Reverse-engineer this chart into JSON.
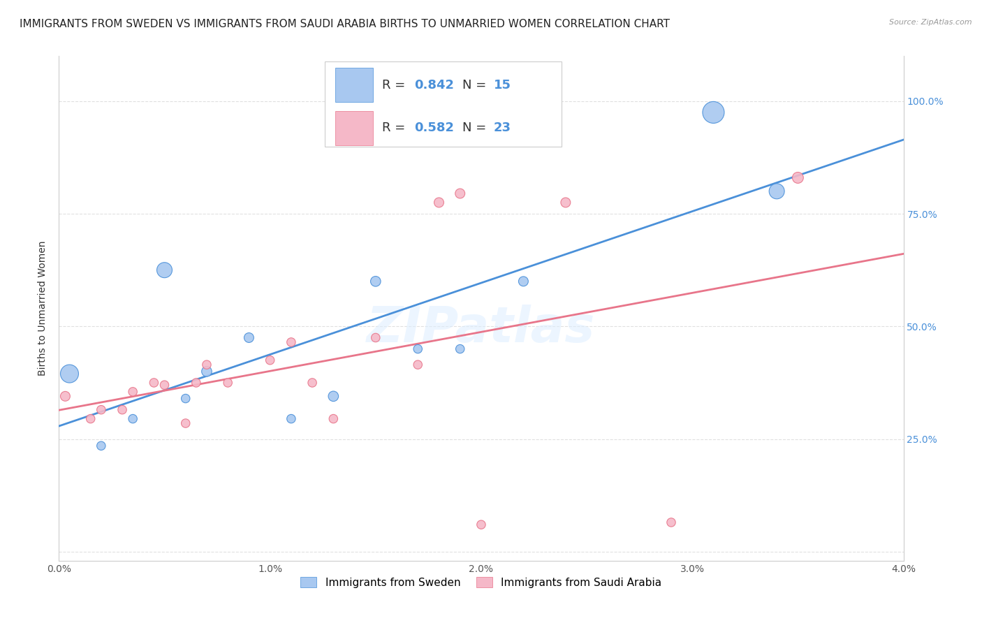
{
  "title": "IMMIGRANTS FROM SWEDEN VS IMMIGRANTS FROM SAUDI ARABIA BIRTHS TO UNMARRIED WOMEN CORRELATION CHART",
  "source": "Source: ZipAtlas.com",
  "ylabel": "Births to Unmarried Women",
  "legend_label1": "Immigrants from Sweden",
  "legend_label2": "Immigrants from Saudi Arabia",
  "r1": 0.842,
  "n1": 15,
  "r2": 0.582,
  "n2": 23,
  "color_sweden": "#a8c8f0",
  "color_saudi": "#f5b8c8",
  "color_line_sweden": "#4a90d9",
  "color_line_saudi": "#e8758a",
  "xlim": [
    0.0,
    0.04
  ],
  "ylim": [
    -0.02,
    1.1
  ],
  "xticks": [
    0.0,
    0.01,
    0.02,
    0.03,
    0.04
  ],
  "xtick_labels": [
    "0.0%",
    "1.0%",
    "2.0%",
    "3.0%",
    "4.0%"
  ],
  "yticks": [
    0.0,
    0.25,
    0.5,
    0.75,
    1.0
  ],
  "ytick_labels": [
    "",
    "25.0%",
    "50.0%",
    "75.0%",
    "100.0%"
  ],
  "sweden_x": [
    0.0005,
    0.002,
    0.0035,
    0.005,
    0.006,
    0.007,
    0.009,
    0.011,
    0.013,
    0.015,
    0.017,
    0.019,
    0.022,
    0.031,
    0.034
  ],
  "sweden_y": [
    0.395,
    0.235,
    0.295,
    0.625,
    0.34,
    0.4,
    0.475,
    0.295,
    0.345,
    0.6,
    0.45,
    0.45,
    0.6,
    0.975,
    0.8
  ],
  "sweden_size": [
    350,
    80,
    80,
    250,
    80,
    110,
    100,
    80,
    110,
    110,
    80,
    80,
    100,
    500,
    250
  ],
  "saudi_x": [
    0.0003,
    0.0015,
    0.002,
    0.003,
    0.0035,
    0.0045,
    0.005,
    0.006,
    0.0065,
    0.007,
    0.008,
    0.01,
    0.011,
    0.012,
    0.013,
    0.015,
    0.017,
    0.018,
    0.019,
    0.02,
    0.024,
    0.029,
    0.035
  ],
  "saudi_y": [
    0.345,
    0.295,
    0.315,
    0.315,
    0.355,
    0.375,
    0.37,
    0.285,
    0.375,
    0.415,
    0.375,
    0.425,
    0.465,
    0.375,
    0.295,
    0.475,
    0.415,
    0.775,
    0.795,
    0.06,
    0.775,
    0.065,
    0.83
  ],
  "saudi_size": [
    100,
    80,
    80,
    80,
    80,
    80,
    80,
    80,
    80,
    80,
    80,
    80,
    80,
    80,
    80,
    80,
    80,
    100,
    100,
    80,
    100,
    80,
    130
  ],
  "watermark": "ZIPatlas",
  "background_color": "#ffffff",
  "grid_color": "#e0e0e0",
  "title_fontsize": 11,
  "axis_label_fontsize": 10,
  "tick_fontsize": 10,
  "legend_r_color": "#4a90d9"
}
